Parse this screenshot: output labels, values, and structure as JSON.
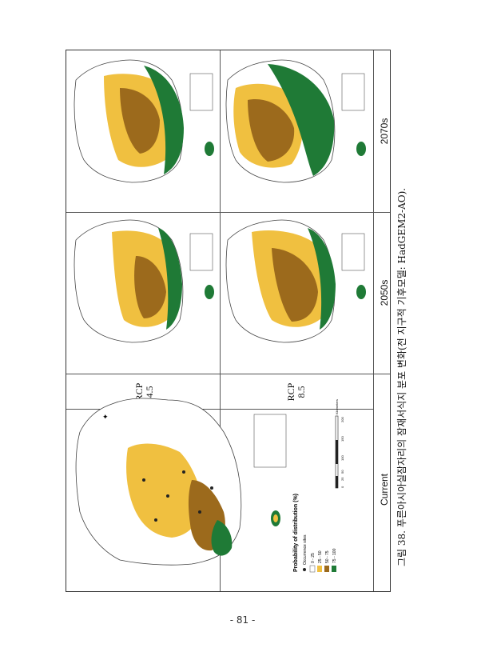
{
  "header_row": {
    "current": "Current",
    "decade_2050": "2050s",
    "decade_2070": "2070s"
  },
  "scenarios": [
    {
      "label": "RCP",
      "value": "4.5"
    },
    {
      "label": "RCP",
      "value": "8.5"
    }
  ],
  "legend": {
    "title": "Probability of distribution (%)",
    "occurrence": "Occurrence sites",
    "classes": [
      {
        "label": "0 - 25",
        "color": "#ffffff"
      },
      {
        "label": "25 - 50",
        "color": "#f0c040"
      },
      {
        "label": "50 - 75",
        "color": "#9c6a1c"
      },
      {
        "label": "75 - 100",
        "color": "#1f7a36"
      }
    ]
  },
  "scale_bar": {
    "ticks": [
      "0",
      "25",
      "50",
      "100",
      "150",
      "200"
    ],
    "unit": "Kilometers"
  },
  "caption": "그림 38. 푸른아시아실잠자리의 잠재서식지 분포 변화(전 지구적 기후모델: HadGEM2-AO).",
  "page_number": "- 81 -",
  "colors": {
    "class_0_25": "#ffffff",
    "class_25_50": "#f0c040",
    "class_50_75": "#9c6a1c",
    "class_75_100": "#1f7a36"
  }
}
